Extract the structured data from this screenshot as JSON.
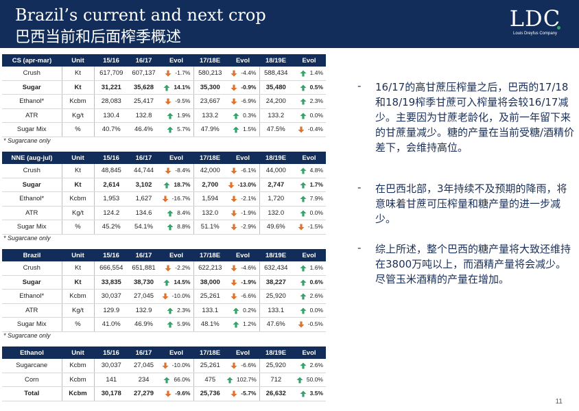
{
  "header": {
    "title_en": "Brazil’s current and next crop",
    "title_zh": "巴西当前和后面榨季概述",
    "logo_text": "LDC",
    "logo_sub": "Louis Dreyfus Company"
  },
  "colors": {
    "header_bg": "#122d5a",
    "arrow_up": "#38a26c",
    "arrow_down": "#e0722e",
    "text_blue": "#1a2f57"
  },
  "tables": [
    {
      "name": "cs",
      "columns": [
        "CS (apr-mar)",
        "Unit",
        "15/16",
        "16/17",
        "Evol",
        "17/18E",
        "Evol",
        "18/19E",
        "Evol"
      ],
      "rows": [
        {
          "label": "Crush",
          "unit": "Kt",
          "v1": "617,709",
          "v2": "607,137",
          "e1": "-1.7%",
          "d1": "down",
          "v3": "580,213",
          "e2": "-4.4%",
          "d2": "down",
          "v4": "588,434",
          "e3": "1.4%",
          "d3": "up",
          "bold": false
        },
        {
          "label": "Sugar",
          "unit": "Kt",
          "v1": "31,221",
          "v2": "35,628",
          "e1": "14.1%",
          "d1": "up",
          "v3": "35,300",
          "e2": "-0.9%",
          "d2": "down",
          "v4": "35,480",
          "e3": "0.5%",
          "d3": "up",
          "bold": true
        },
        {
          "label": "Ethanol*",
          "unit": "Kcbm",
          "v1": "28,083",
          "v2": "25,417",
          "e1": "-9.5%",
          "d1": "down",
          "v3": "23,667",
          "e2": "-6.9%",
          "d2": "down",
          "v4": "24,200",
          "e3": "2.3%",
          "d3": "up",
          "bold": false
        },
        {
          "label": "ATR",
          "unit": "Kg/t",
          "v1": "130.4",
          "v2": "132.8",
          "e1": "1.9%",
          "d1": "up",
          "v3": "133.2",
          "e2": "0.3%",
          "d2": "up",
          "v4": "133.2",
          "e3": "0.0%",
          "d3": "up",
          "bold": false
        },
        {
          "label": "Sugar Mix",
          "unit": "%",
          "v1": "40.7%",
          "v2": "46.4%",
          "e1": "5.7%",
          "d1": "up",
          "v3": "47.9%",
          "e2": "1.5%",
          "d2": "up",
          "v4": "47.5%",
          "e3": "-0.4%",
          "d3": "down",
          "bold": false
        }
      ],
      "note": "* Sugarcane only"
    },
    {
      "name": "nne",
      "columns": [
        "NNE (aug-jul)",
        "Unit",
        "15/16",
        "16/17",
        "Evol",
        "17/18E",
        "Evol",
        "18/19E",
        "Evol"
      ],
      "rows": [
        {
          "label": "Crush",
          "unit": "Kt",
          "v1": "48,845",
          "v2": "44,744",
          "e1": "-8.4%",
          "d1": "down",
          "v3": "42,000",
          "e2": "-6.1%",
          "d2": "down",
          "v4": "44,000",
          "e3": "4.8%",
          "d3": "up",
          "bold": false
        },
        {
          "label": "Sugar",
          "unit": "Kt",
          "v1": "2,614",
          "v2": "3,102",
          "e1": "18.7%",
          "d1": "up",
          "v3": "2,700",
          "e2": "-13.0%",
          "d2": "down",
          "v4": "2,747",
          "e3": "1.7%",
          "d3": "up",
          "bold": true
        },
        {
          "label": "Ethanol*",
          "unit": "Kcbm",
          "v1": "1,953",
          "v2": "1,627",
          "e1": "-16.7%",
          "d1": "down",
          "v3": "1,594",
          "e2": "-2.1%",
          "d2": "down",
          "v4": "1,720",
          "e3": "7.9%",
          "d3": "up",
          "bold": false
        },
        {
          "label": "ATR",
          "unit": "Kg/t",
          "v1": "124.2",
          "v2": "134.6",
          "e1": "8.4%",
          "d1": "up",
          "v3": "132.0",
          "e2": "-1.9%",
          "d2": "down",
          "v4": "132.0",
          "e3": "0.0%",
          "d3": "up",
          "bold": false
        },
        {
          "label": "Sugar Mix",
          "unit": "%",
          "v1": "45.2%",
          "v2": "54.1%",
          "e1": "8.8%",
          "d1": "up",
          "v3": "51.1%",
          "e2": "-2.9%",
          "d2": "down",
          "v4": "49.6%",
          "e3": "-1.5%",
          "d3": "down",
          "bold": false
        }
      ],
      "note": "* Sugarcane only"
    },
    {
      "name": "brazil",
      "columns": [
        "Brazil",
        "Unit",
        "15/16",
        "16/17",
        "Evol",
        "17/18E",
        "Evol",
        "18/19E",
        "Evol"
      ],
      "rows": [
        {
          "label": "Crush",
          "unit": "Kt",
          "v1": "666,554",
          "v2": "651,881",
          "e1": "-2.2%",
          "d1": "down",
          "v3": "622,213",
          "e2": "-4.6%",
          "d2": "down",
          "v4": "632,434",
          "e3": "1.6%",
          "d3": "up",
          "bold": false
        },
        {
          "label": "Sugar",
          "unit": "Kt",
          "v1": "33,835",
          "v2": "38,730",
          "e1": "14.5%",
          "d1": "up",
          "v3": "38,000",
          "e2": "-1.9%",
          "d2": "down",
          "v4": "38,227",
          "e3": "0.6%",
          "d3": "up",
          "bold": true
        },
        {
          "label": "Ethanol*",
          "unit": "Kcbm",
          "v1": "30,037",
          "v2": "27,045",
          "e1": "-10.0%",
          "d1": "down",
          "v3": "25,261",
          "e2": "-6.6%",
          "d2": "down",
          "v4": "25,920",
          "e3": "2.6%",
          "d3": "up",
          "bold": false
        },
        {
          "label": "ATR",
          "unit": "Kg/t",
          "v1": "129.9",
          "v2": "132.9",
          "e1": "2.3%",
          "d1": "up",
          "v3": "133.1",
          "e2": "0.2%",
          "d2": "up",
          "v4": "133.1",
          "e3": "0.0%",
          "d3": "up",
          "bold": false
        },
        {
          "label": "Sugar Mix",
          "unit": "%",
          "v1": "41.0%",
          "v2": "46.9%",
          "e1": "5.9%",
          "d1": "up",
          "v3": "48.1%",
          "e2": "1.2%",
          "d2": "up",
          "v4": "47.6%",
          "e3": "-0.5%",
          "d3": "down",
          "bold": false
        }
      ],
      "note": "* Sugarcane only"
    },
    {
      "name": "ethanol",
      "columns": [
        "Ethanol",
        "Unit",
        "15/16",
        "16/17",
        "Evol",
        "17/18E",
        "Evol",
        "18/19E",
        "Evol"
      ],
      "rows": [
        {
          "label": "Sugarcane",
          "unit": "Kcbm",
          "v1": "30,037",
          "v2": "27,045",
          "e1": "-10.0%",
          "d1": "down",
          "v3": "25,261",
          "e2": "-6.6%",
          "d2": "down",
          "v4": "25,920",
          "e3": "2.6%",
          "d3": "up",
          "bold": false
        },
        {
          "label": "Corn",
          "unit": "Kcbm",
          "v1": "141",
          "v2": "234",
          "e1": "66.0%",
          "d1": "up",
          "v3": "475",
          "e2": "102.7%",
          "d2": "up",
          "v4": "712",
          "e3": "50.0%",
          "d3": "up",
          "bold": false
        },
        {
          "label": "Total",
          "unit": "Kcbm",
          "v1": "30,178",
          "v2": "27,279",
          "e1": "-9.6%",
          "d1": "down",
          "v3": "25,736",
          "e2": "-5.7%",
          "d2": "down",
          "v4": "26,632",
          "e3": "3.5%",
          "d3": "up",
          "bold": true
        }
      ],
      "note": ""
    }
  ],
  "bullets": [
    {
      "dash": "-",
      "text": "16/17的高甘蔗压榨量之后，巴西的17/18和18/19榨季甘蔗可入榨量将会较16/17减少。主要因为甘蔗老龄化，及前一年留下来的甘蔗量减少。糖的产量在当前受糖/酒精价差下，会维持高位。"
    },
    {
      "dash": "-",
      "text": "在巴西北部，3年持续不及预期的降雨，将意味着甘蔗可压榨量和糖产量的进一步减少。"
    },
    {
      "dash": "-",
      "text": "综上所述，整个巴西的糖产量将大致还维持在3800万吨以上，而酒精产量将会减少。尽管玉米酒精的产量在增加。"
    }
  ],
  "page_number": "11"
}
